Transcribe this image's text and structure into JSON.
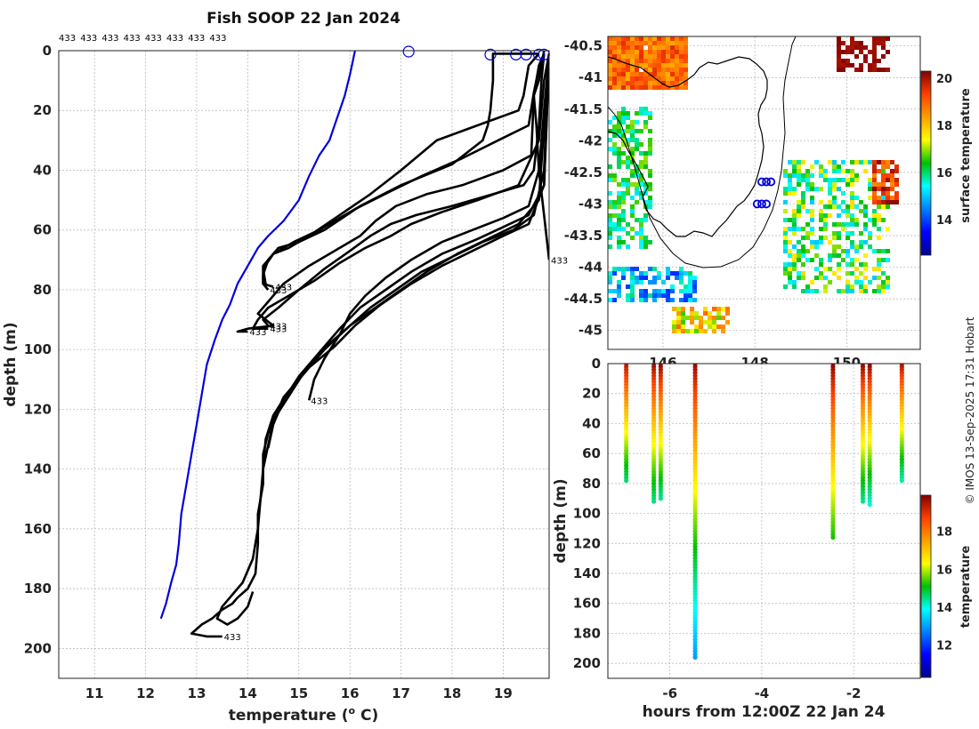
{
  "figure": {
    "title": "Fish SOOP 22 Jan 2024",
    "credit": "© IMOS 13-Sep-2025 17:31 Hobart"
  },
  "chart_data": [
    {
      "type": "line",
      "name": "profiles",
      "title": "Fish SOOP 22 Jan 2024",
      "xlabel": "temperature (",
      "xlabel_sup": "o",
      "xlabel_suffix": " C)",
      "ylabel": "depth (m)",
      "xlim": [
        10.3,
        19.9
      ],
      "ylim": [
        0,
        210
      ],
      "y_reversed": true,
      "grid": true,
      "xticks": [
        11,
        12,
        13,
        14,
        15,
        16,
        17,
        18,
        19
      ],
      "yticks": [
        0,
        20,
        40,
        60,
        80,
        100,
        120,
        140,
        160,
        180,
        200
      ],
      "top_labels": [
        "433",
        "433",
        "433",
        "433",
        "433",
        "433",
        "433",
        "433"
      ],
      "series": [
        {
          "name": "climatology",
          "color": "#0000dd",
          "x": [
            16.1,
            16.0,
            15.9,
            15.8,
            15.7,
            15.6,
            15.4,
            15.2,
            15.0,
            14.7,
            14.4,
            14.2,
            14.0,
            13.8,
            13.65,
            13.5,
            13.35,
            13.2,
            13.1,
            13.0,
            12.9,
            12.8,
            12.7,
            12.65,
            12.6,
            12.5,
            12.4,
            12.3
          ],
          "y": [
            0,
            8,
            15,
            20,
            25,
            30,
            35,
            42,
            50,
            57,
            62,
            66,
            72,
            78,
            85,
            90,
            97,
            105,
            115,
            125,
            135,
            145,
            155,
            165,
            172,
            178,
            185,
            190
          ]
        },
        {
          "name": "p1",
          "color": "#000000",
          "x": [
            19.8,
            19.75,
            19.7,
            19.6,
            19.65,
            19.7,
            19.8,
            19.9
          ],
          "y": [
            0,
            5,
            10,
            15,
            25,
            40,
            55,
            70
          ],
          "end_label": "433"
        },
        {
          "name": "p2",
          "color": "#000000",
          "x": [
            19.7,
            18.8,
            18.8,
            18.75,
            18.7,
            18.6,
            18.0,
            17.0,
            16.2,
            15.5,
            15.0,
            14.6,
            14.4,
            14.3,
            14.3,
            14.5
          ],
          "y": [
            1,
            1,
            10,
            20,
            25,
            30,
            38,
            45,
            52,
            60,
            64,
            66,
            70,
            75,
            78,
            79
          ],
          "end_label": "433"
        },
        {
          "name": "p3",
          "color": "#000000",
          "x": [
            19.7,
            19.5,
            19.4,
            19.3,
            18.5,
            17.7,
            17.0,
            16.4,
            15.8,
            15.2,
            14.8,
            14.5,
            14.3,
            14.3,
            14.4
          ],
          "y": [
            1,
            5,
            15,
            20,
            25,
            30,
            40,
            48,
            55,
            62,
            66,
            68,
            72,
            78,
            80
          ],
          "end_label": "433"
        },
        {
          "name": "p4",
          "color": "#000000",
          "x": [
            19.8,
            19.7,
            19.6,
            19.5,
            18.9,
            18.2,
            17.4,
            16.8,
            16.1,
            15.4,
            14.9,
            14.5,
            14.3,
            14.35
          ],
          "y": [
            1,
            6,
            14,
            25,
            30,
            36,
            42,
            47,
            53,
            60,
            64,
            68,
            73,
            78
          ]
        },
        {
          "name": "p5",
          "color": "#000000",
          "x": [
            19.8,
            19.7,
            19.6,
            19.55,
            19.0,
            18.2,
            17.5,
            16.9,
            16.5,
            16.2,
            15.7,
            15.2,
            14.7,
            14.4,
            14.2,
            14.5,
            14.0,
            13.8,
            14.0
          ],
          "y": [
            1,
            5,
            15,
            35,
            40,
            45,
            48,
            52,
            57,
            62,
            67,
            72,
            78,
            84,
            88,
            92,
            93,
            94,
            94
          ],
          "end_label": "433"
        },
        {
          "name": "p6",
          "color": "#000000",
          "x": [
            19.8,
            19.75,
            19.7,
            19.6,
            19.4,
            18.8,
            18.0,
            17.3,
            16.8,
            16.4,
            16.0,
            15.5,
            15.0,
            14.6,
            14.3,
            14.4
          ],
          "y": [
            1,
            10,
            25,
            40,
            45,
            48,
            52,
            55,
            58,
            62,
            67,
            73,
            80,
            86,
            90,
            92
          ],
          "end_label": "433"
        },
        {
          "name": "p7",
          "color": "#000000",
          "x": [
            19.9,
            19.8,
            19.7,
            19.3,
            18.5,
            17.8,
            17.2,
            16.8,
            16.3,
            15.8,
            15.3,
            14.8,
            14.4,
            14.2,
            14.1,
            14.4
          ],
          "y": [
            1,
            10,
            30,
            45,
            50,
            54,
            58,
            62,
            66,
            71,
            77,
            82,
            86,
            90,
            93,
            93
          ],
          "end_label": "433"
        },
        {
          "name": "p8",
          "color": "#000000",
          "x": [
            19.9,
            19.8,
            19.7,
            19.5,
            19.0,
            18.4,
            17.8,
            17.2,
            16.7,
            16.3,
            16.0,
            15.8,
            15.5,
            15.3,
            15.2
          ],
          "y": [
            1,
            20,
            40,
            52,
            56,
            60,
            64,
            70,
            76,
            82,
            88,
            95,
            103,
            110,
            117
          ],
          "end_label": "433"
        },
        {
          "name": "p9",
          "color": "#000000",
          "x": [
            19.9,
            19.85,
            19.8,
            19.6,
            19.2,
            18.6,
            18.0,
            17.4,
            16.9,
            16.4,
            16.0,
            15.6,
            15.2,
            14.9,
            14.6,
            14.4,
            14.3,
            14.3,
            14.2,
            14.2,
            14.15,
            14.0,
            13.8,
            13.7,
            13.5,
            13.3,
            13.1,
            12.9,
            13.2,
            13.5
          ],
          "y": [
            1,
            20,
            40,
            55,
            60,
            64,
            69,
            74,
            80,
            86,
            92,
            98,
            105,
            113,
            121,
            128,
            135,
            145,
            155,
            165,
            175,
            180,
            183,
            185,
            187,
            190,
            192,
            195,
            196,
            196
          ],
          "end_label": "433"
        },
        {
          "name": "p10",
          "color": "#000000",
          "x": [
            19.9,
            19.85,
            19.8,
            19.5,
            19.0,
            18.4,
            17.8,
            17.2,
            16.6,
            16.1,
            15.7,
            15.2,
            14.8,
            14.5,
            14.35,
            14.3,
            14.25,
            14.2,
            14.1,
            13.9,
            13.7,
            13.5,
            13.4,
            13.6,
            13.8,
            14.0,
            14.1
          ],
          "y": [
            1,
            25,
            45,
            58,
            62,
            67,
            72,
            78,
            85,
            92,
            99,
            106,
            114,
            122,
            130,
            140,
            150,
            160,
            170,
            178,
            182,
            186,
            190,
            192,
            190,
            186,
            181
          ]
        },
        {
          "name": "p11",
          "color": "#000000",
          "x": [
            19.9,
            19.7,
            19.3,
            18.7,
            18.1,
            17.5,
            17.0,
            16.5,
            16.0,
            15.5,
            15.1,
            14.7,
            14.5,
            14.4,
            14.3
          ],
          "y": [
            1,
            50,
            58,
            63,
            68,
            74,
            80,
            86,
            92,
            100,
            108,
            116,
            124,
            132,
            140
          ]
        },
        {
          "name": "p12",
          "color": "#000000",
          "x": [
            19.9,
            19.8,
            19.5,
            19.0,
            18.5,
            17.8,
            17.2,
            16.7,
            16.2,
            15.8,
            15.4,
            15.0,
            14.7,
            14.5,
            14.4
          ],
          "y": [
            1,
            45,
            55,
            59,
            63,
            68,
            74,
            80,
            86,
            93,
            101,
            109,
            117,
            125,
            133
          ]
        }
      ],
      "surface_markers": [
        {
          "x": 17.15,
          "y": 0
        },
        {
          "x": 18.75,
          "y": 1
        },
        {
          "x": 19.25,
          "y": 1
        },
        {
          "x": 19.45,
          "y": 1
        },
        {
          "x": 19.7,
          "y": 1
        },
        {
          "x": 19.8,
          "y": 1
        }
      ]
    },
    {
      "type": "heatmap",
      "name": "map",
      "xticks": [
        146,
        148,
        150
      ],
      "yticks": [
        -40.5,
        -41,
        -41.5,
        -42,
        -42.5,
        -43,
        -43.5,
        -44,
        -44.5,
        -45
      ],
      "xlim": [
        144.8,
        151.6
      ],
      "ylim": [
        -45.3,
        -40.35
      ],
      "colorbar": {
        "label": "surface temperature",
        "min": 12.5,
        "max": 20.3,
        "ticks": [
          14,
          16,
          18,
          20
        ]
      },
      "ship_markers": [
        {
          "lon": 148.15,
          "lat": -42.65
        },
        {
          "lon": 148.25,
          "lat": -42.65
        },
        {
          "lon": 148.35,
          "lat": -42.65
        },
        {
          "lon": 148.05,
          "lat": -43.0
        },
        {
          "lon": 148.15,
          "lat": -43.0
        },
        {
          "lon": 148.25,
          "lat": -43.0
        }
      ]
    },
    {
      "type": "scatter",
      "name": "timeseries",
      "xlabel": "hours from 12:00Z 22 Jan 24",
      "ylabel": "depth (m)",
      "xlim": [
        -7.35,
        -0.55
      ],
      "ylim": [
        0,
        210
      ],
      "y_reversed": true,
      "xticks": [
        -6,
        -4,
        -2
      ],
      "yticks": [
        0,
        20,
        40,
        60,
        80,
        100,
        120,
        140,
        160,
        180,
        200
      ],
      "colorbar": {
        "label": "temperature",
        "min": 10.3,
        "max": 19.9,
        "ticks": [
          12,
          14,
          16,
          18
        ]
      },
      "casts": [
        {
          "hour": -6.95,
          "max_depth": 78,
          "t_surface": 19.6,
          "t_bottom": 14.6
        },
        {
          "hour": -6.35,
          "max_depth": 92,
          "t_surface": 19.8,
          "t_bottom": 14.5
        },
        {
          "hour": -6.2,
          "max_depth": 91,
          "t_surface": 19.9,
          "t_bottom": 14.4
        },
        {
          "hour": -5.45,
          "max_depth": 196,
          "t_surface": 19.8,
          "t_bottom": 13.0
        },
        {
          "hour": -2.45,
          "max_depth": 116,
          "t_surface": 19.9,
          "t_bottom": 15.2
        },
        {
          "hour": -1.8,
          "max_depth": 93,
          "t_surface": 19.9,
          "t_bottom": 14.4
        },
        {
          "hour": -1.65,
          "max_depth": 94,
          "t_surface": 19.9,
          "t_bottom": 14.1
        },
        {
          "hour": -0.95,
          "max_depth": 78,
          "t_surface": 19.7,
          "t_bottom": 14.3
        }
      ]
    }
  ]
}
